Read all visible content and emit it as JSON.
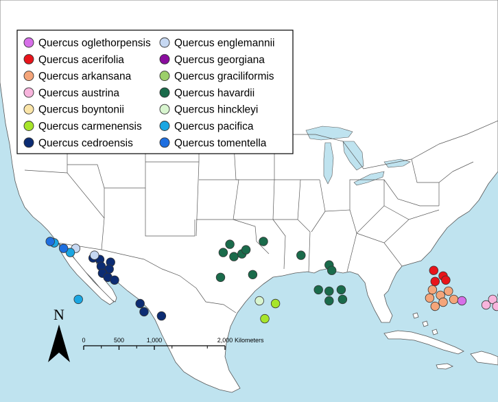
{
  "colors": {
    "water": "#bfe3ef",
    "land": "#ffffff",
    "border": "#555555"
  },
  "legend": {
    "items": [
      {
        "name": "Quercus oglethorpensis",
        "color": "#d66fe8"
      },
      {
        "name": "Quercus acerifolia",
        "color": "#e8141b"
      },
      {
        "name": "Quercus arkansana",
        "color": "#f4a57a"
      },
      {
        "name": "Quercus austrina",
        "color": "#f7b4dc"
      },
      {
        "name": "Quercus boyntonii",
        "color": "#fbe5a8"
      },
      {
        "name": "Quercus carmenensis",
        "color": "#a7e52b"
      },
      {
        "name": "Quercus cedroensis",
        "color": "#0c2c73"
      },
      {
        "name": "Quercus englemannii",
        "color": "#c6d8f2"
      },
      {
        "name": "Quercus georgiana",
        "color": "#8a0d9e"
      },
      {
        "name": "Quercus graciliformis",
        "color": "#9ccf6a"
      },
      {
        "name": "Quercus havardii",
        "color": "#1a6b4b"
      },
      {
        "name": "Quercus hinckleyi",
        "color": "#d8f5cf"
      },
      {
        "name": "Quercus pacifica",
        "color": "#1aa6e2"
      },
      {
        "name": "Quercus tomentella",
        "color": "#1e6fe0"
      }
    ]
  },
  "north_arrow": {
    "label": "N"
  },
  "scale_bar": {
    "ticks": [
      "0",
      "500",
      "1,000",
      "2,000"
    ],
    "tick_km": [
      0,
      500,
      1000,
      2000
    ],
    "unit": "Kilometers"
  },
  "occurrences": [
    {
      "species": "Quercus havardii",
      "points": [
        [
          -109.5,
          39.0
        ],
        [
          -107.0,
          39.2
        ],
        [
          -110.0,
          38.4
        ],
        [
          -109.2,
          38.1
        ],
        [
          -108.6,
          38.3
        ],
        [
          -108.3,
          38.6
        ],
        [
          -110.2,
          36.6
        ],
        [
          -107.8,
          36.8
        ],
        [
          -104.2,
          38.2
        ],
        [
          -102.1,
          37.5
        ],
        [
          -101.9,
          37.1
        ],
        [
          -102.9,
          35.7
        ],
        [
          -102.1,
          35.6
        ],
        [
          -101.2,
          35.7
        ],
        [
          -102.1,
          34.9
        ],
        [
          -101.1,
          35.0
        ]
      ]
    },
    {
      "species": "Quercus acerifolia",
      "points": [
        [
          -94.3,
          37.1
        ],
        [
          -93.6,
          36.7
        ],
        [
          -94.2,
          36.3
        ],
        [
          -93.4,
          36.4
        ]
      ]
    },
    {
      "species": "Quercus arkansana",
      "points": [
        [
          -94.4,
          35.7
        ],
        [
          -93.8,
          35.3
        ],
        [
          -93.2,
          35.6
        ],
        [
          -94.6,
          35.1
        ],
        [
          -93.6,
          34.8
        ],
        [
          -94.2,
          34.5
        ],
        [
          -92.8,
          35.0
        ],
        [
          -85.9,
          34.6
        ],
        [
          -85.2,
          34.2
        ],
        [
          -84.6,
          34.4
        ],
        [
          -84.1,
          34.1
        ],
        [
          -86.1,
          34.1
        ],
        [
          -85.5,
          33.7
        ],
        [
          -84.9,
          33.6
        ],
        [
          -84.1,
          33.7
        ],
        [
          -83.6,
          33.5
        ],
        [
          -85.8,
          33.2
        ],
        [
          -85.2,
          33.0
        ],
        [
          -84.6,
          33.1
        ],
        [
          -83.9,
          33.2
        ]
      ]
    },
    {
      "species": "Quercus oglethorpensis",
      "points": [
        [
          -92.2,
          34.9
        ],
        [
          -82.1,
          36.1
        ],
        [
          -81.4,
          36.3
        ],
        [
          -80.8,
          36.2
        ],
        [
          -81.6,
          35.6
        ]
      ]
    },
    {
      "species": "Quercus austrina",
      "points": [
        [
          -89.9,
          35.0
        ],
        [
          -89.2,
          35.3
        ],
        [
          -88.6,
          35.0
        ],
        [
          -88.0,
          35.3
        ],
        [
          -90.4,
          34.6
        ],
        [
          -89.6,
          34.5
        ],
        [
          -88.9,
          34.6
        ],
        [
          -82.9,
          35.2
        ],
        [
          -82.2,
          35.6
        ],
        [
          -81.4,
          35.6
        ],
        [
          -80.4,
          35.7
        ],
        [
          -82.7,
          34.8
        ],
        [
          -82.0,
          34.6
        ],
        [
          -81.3,
          34.7
        ],
        [
          -80.6,
          34.8
        ],
        [
          -82.6,
          34.2
        ],
        [
          -81.9,
          33.8
        ],
        [
          -81.1,
          34.0
        ],
        [
          -80.4,
          34.1
        ],
        [
          -82.3,
          33.2
        ],
        [
          -81.6,
          33.0
        ],
        [
          -80.9,
          33.2
        ],
        [
          -82.0,
          32.1
        ],
        [
          -81.3,
          31.8
        ],
        [
          -80.8,
          32.3
        ]
      ]
    },
    {
      "species": "Quercus boyntonii",
      "points": [
        [
          -88.9,
          35.8
        ],
        [
          -86.6,
          35.7
        ]
      ]
    },
    {
      "species": "Quercus georgiana",
      "points": [
        [
          -86.7,
          35.7
        ],
        [
          -86.2,
          35.4
        ],
        [
          -85.1,
          35.7
        ],
        [
          -84.4,
          35.6
        ],
        [
          -83.7,
          35.8
        ],
        [
          -80.2,
          36.3
        ]
      ]
    },
    {
      "species": "Quercus carmenensis",
      "points": [
        [
          -106.1,
          34.7
        ],
        [
          -106.9,
          33.6
        ]
      ]
    },
    {
      "species": "Quercus hinckleyi",
      "points": [
        [
          -107.3,
          34.9
        ]
      ]
    },
    {
      "species": "Quercus cedroensis",
      "points": [
        [
          -119.7,
          38.0
        ],
        [
          -119.2,
          37.9
        ],
        [
          -118.4,
          37.7
        ],
        [
          -119.1,
          37.4
        ],
        [
          -118.5,
          37.2
        ],
        [
          -119.0,
          36.9
        ],
        [
          -118.6,
          36.6
        ],
        [
          -118.1,
          36.4
        ],
        [
          -116.2,
          34.7
        ],
        [
          -115.9,
          34.1
        ],
        [
          -114.6,
          33.8
        ]
      ]
    },
    {
      "species": "Quercus englemannii",
      "points": [
        [
          -121.0,
          38.7
        ],
        [
          -119.6,
          38.2
        ]
      ]
    },
    {
      "species": "Quercus pacifica",
      "points": [
        [
          -122.6,
          39.1
        ],
        [
          -121.4,
          38.4
        ],
        [
          -120.8,
          35.0
        ]
      ]
    },
    {
      "species": "Quercus tomentella",
      "points": [
        [
          -122.9,
          39.2
        ],
        [
          -121.9,
          38.7
        ]
      ]
    }
  ]
}
